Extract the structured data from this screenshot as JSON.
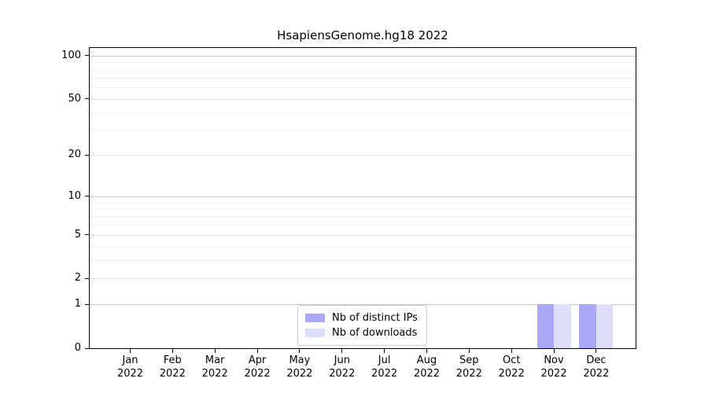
{
  "chart_data": {
    "type": "bar",
    "title": "HsapiensGenome.hg18 2022",
    "xlabel": "",
    "ylabel": "",
    "categories": [
      "Jan",
      "Feb",
      "Mar",
      "Apr",
      "May",
      "Jun",
      "Jul",
      "Aug",
      "Sep",
      "Oct",
      "Nov",
      "Dec"
    ],
    "x_tick_line2": "2022",
    "series": [
      {
        "name": "Nb of distinct IPs",
        "color": "#a8a8f7",
        "values": [
          0,
          0,
          0,
          0,
          0,
          0,
          0,
          0,
          0,
          0,
          1,
          1
        ]
      },
      {
        "name": "Nb of downloads",
        "color": "#dedefa",
        "values": [
          0,
          0,
          0,
          0,
          0,
          0,
          0,
          0,
          0,
          0,
          1,
          1
        ]
      }
    ],
    "y_axis": {
      "scale": "log1p",
      "ticks": [
        0,
        1,
        2,
        5,
        10,
        20,
        50,
        100
      ],
      "emphasized_gridlines": [
        1,
        10,
        100
      ],
      "minor_gridlines": [
        3,
        4,
        6,
        7,
        8,
        9,
        30,
        40,
        60,
        70,
        80,
        90
      ],
      "ylim": [
        0,
        113
      ]
    },
    "legend": {
      "position": "bottom-center",
      "entries": [
        "Nb of distinct IPs",
        "Nb of downloads"
      ]
    },
    "grid": "on",
    "colors": {
      "frame": "#000000",
      "gridline_emphasized": "#c6c6c6",
      "gridline_major": "#e0e0e0",
      "gridline_minor": "#f2f2f2"
    }
  }
}
